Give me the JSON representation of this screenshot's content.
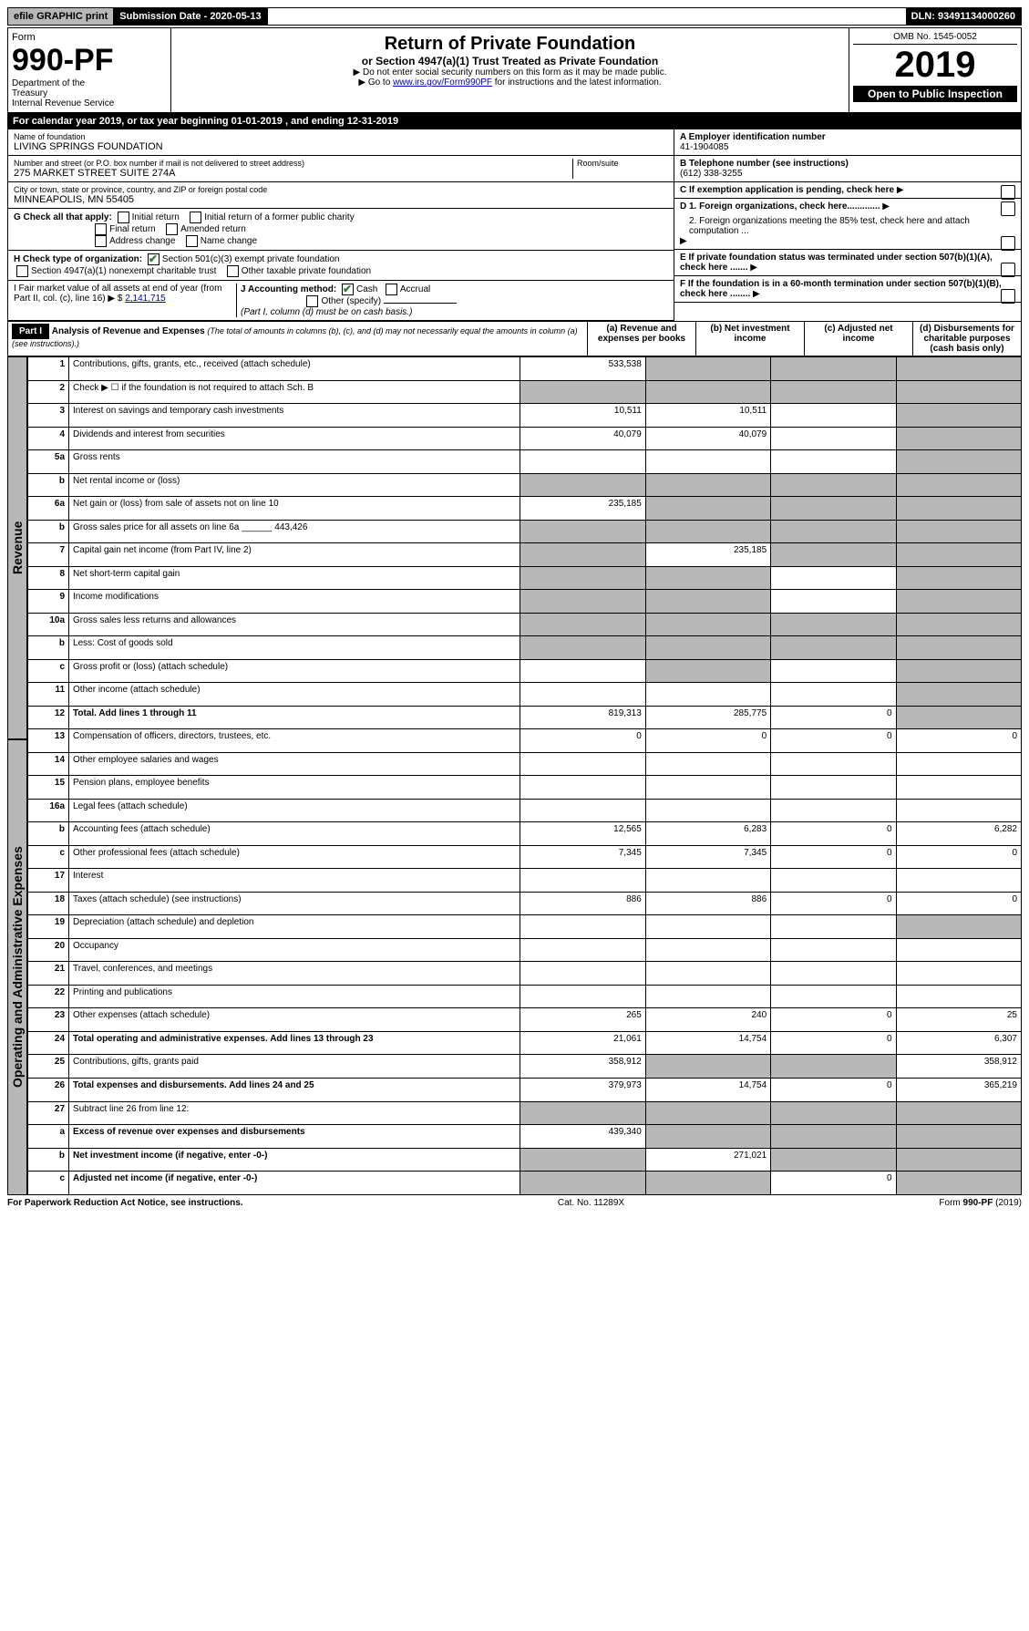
{
  "top": {
    "efile": "efile GRAPHIC print",
    "submission": "Submission Date - 2020-05-13",
    "dln": "DLN: 93491134000260"
  },
  "header": {
    "form_label": "Form",
    "form_number": "990-PF",
    "dept": "Department of the Treasury\nInternal Revenue Service",
    "title": "Return of Private Foundation",
    "subtitle": "or Section 4947(a)(1) Trust Treated as Private Foundation",
    "note1": "▶ Do not enter social security numbers on this form as it may be made public.",
    "note2_prefix": "▶ Go to ",
    "note2_link": "www.irs.gov/Form990PF",
    "note2_suffix": " for instructions and the latest information.",
    "omb": "OMB No. 1545-0052",
    "year": "2019",
    "open": "Open to Public Inspection"
  },
  "calyear": "For calendar year 2019, or tax year beginning 01-01-2019           , and ending 12-31-2019",
  "entity": {
    "name_label": "Name of foundation",
    "name": "LIVING SPRINGS FOUNDATION",
    "addr_label": "Number and street (or P.O. box number if mail is not delivered to street address)",
    "addr": "275 MARKET STREET SUITE 274A",
    "room_label": "Room/suite",
    "city_label": "City or town, state or province, country, and ZIP or foreign postal code",
    "city": "MINNEAPOLIS, MN  55405",
    "ein_label": "A Employer identification number",
    "ein": "41-1904085",
    "phone_label": "B Telephone number (see instructions)",
    "phone": "(612) 338-3255",
    "c_label": "C If exemption application is pending, check here"
  },
  "checks": {
    "g_label": "G Check all that apply:",
    "g_items": [
      "Initial return",
      "Initial return of a former public charity",
      "Final return",
      "Amended return",
      "Address change",
      "Name change"
    ],
    "h_label": "H Check type of organization:",
    "h1": "Section 501(c)(3) exempt private foundation",
    "h2": "Section 4947(a)(1) nonexempt charitable trust",
    "h3": "Other taxable private foundation",
    "i_label": "I Fair market value of all assets at end of year (from Part II, col. (c), line 16) ▶ $",
    "i_value": "2,141,715",
    "j_label": "J Accounting method:",
    "j_cash": "Cash",
    "j_accrual": "Accrual",
    "j_other": "Other (specify)",
    "j_note": "(Part I, column (d) must be on cash basis.)",
    "d1": "D 1. Foreign organizations, check here.............",
    "d2": "2. Foreign organizations meeting the 85% test, check here and attach computation ...",
    "e": "E If private foundation status was terminated under section 507(b)(1)(A), check here .......",
    "f": "F If the foundation is in a 60-month termination under section 507(b)(1)(B), check here ........"
  },
  "part1": {
    "label": "Part I",
    "title": "Analysis of Revenue and Expenses",
    "title_note": "(The total of amounts in columns (b), (c), and (d) may not necessarily equal the amounts in column (a) (see instructions).)",
    "col_a": "(a) Revenue and expenses per books",
    "col_b": "(b) Net investment income",
    "col_c": "(c) Adjusted net income",
    "col_d": "(d) Disbursements for charitable purposes (cash basis only)"
  },
  "revenue_label": "Revenue",
  "expenses_label": "Operating and Administrative Expenses",
  "rows": [
    {
      "n": "1",
      "desc": "Contributions, gifts, grants, etc., received (attach schedule)",
      "a": "533,538",
      "b": "",
      "c": "",
      "d": "",
      "shade": [
        "b",
        "c",
        "d"
      ]
    },
    {
      "n": "2",
      "desc": "Check ▶ ☐ if the foundation is not required to attach Sch. B",
      "a": "",
      "b": "",
      "c": "",
      "d": "",
      "shade": [
        "a",
        "b",
        "c",
        "d"
      ]
    },
    {
      "n": "3",
      "desc": "Interest on savings and temporary cash investments",
      "a": "10,511",
      "b": "10,511",
      "c": "",
      "d": "",
      "shade": [
        "d"
      ]
    },
    {
      "n": "4",
      "desc": "Dividends and interest from securities",
      "a": "40,079",
      "b": "40,079",
      "c": "",
      "d": "",
      "shade": [
        "d"
      ]
    },
    {
      "n": "5a",
      "desc": "Gross rents",
      "a": "",
      "b": "",
      "c": "",
      "d": "",
      "shade": [
        "d"
      ]
    },
    {
      "n": "b",
      "desc": "Net rental income or (loss)",
      "a": "",
      "b": "",
      "c": "",
      "d": "",
      "shade": [
        "a",
        "b",
        "c",
        "d"
      ]
    },
    {
      "n": "6a",
      "desc": "Net gain or (loss) from sale of assets not on line 10",
      "a": "235,185",
      "b": "",
      "c": "",
      "d": "",
      "shade": [
        "b",
        "c",
        "d"
      ]
    },
    {
      "n": "b",
      "desc": "Gross sales price for all assets on line 6a ______ 443,426",
      "a": "",
      "b": "",
      "c": "",
      "d": "",
      "shade": [
        "a",
        "b",
        "c",
        "d"
      ]
    },
    {
      "n": "7",
      "desc": "Capital gain net income (from Part IV, line 2)",
      "a": "",
      "b": "235,185",
      "c": "",
      "d": "",
      "shade": [
        "a",
        "c",
        "d"
      ]
    },
    {
      "n": "8",
      "desc": "Net short-term capital gain",
      "a": "",
      "b": "",
      "c": "",
      "d": "",
      "shade": [
        "a",
        "b",
        "d"
      ]
    },
    {
      "n": "9",
      "desc": "Income modifications",
      "a": "",
      "b": "",
      "c": "",
      "d": "",
      "shade": [
        "a",
        "b",
        "d"
      ]
    },
    {
      "n": "10a",
      "desc": "Gross sales less returns and allowances",
      "a": "",
      "b": "",
      "c": "",
      "d": "",
      "shade": [
        "a",
        "b",
        "c",
        "d"
      ]
    },
    {
      "n": "b",
      "desc": "Less: Cost of goods sold",
      "a": "",
      "b": "",
      "c": "",
      "d": "",
      "shade": [
        "a",
        "b",
        "c",
        "d"
      ]
    },
    {
      "n": "c",
      "desc": "Gross profit or (loss) (attach schedule)",
      "a": "",
      "b": "",
      "c": "",
      "d": "",
      "shade": [
        "b",
        "d"
      ]
    },
    {
      "n": "11",
      "desc": "Other income (attach schedule)",
      "a": "",
      "b": "",
      "c": "",
      "d": "",
      "shade": [
        "d"
      ]
    },
    {
      "n": "12",
      "desc": "Total. Add lines 1 through 11",
      "a": "819,313",
      "b": "285,775",
      "c": "0",
      "d": "",
      "shade": [
        "d"
      ],
      "bold": true
    },
    {
      "n": "13",
      "desc": "Compensation of officers, directors, trustees, etc.",
      "a": "0",
      "b": "0",
      "c": "0",
      "d": "0"
    },
    {
      "n": "14",
      "desc": "Other employee salaries and wages",
      "a": "",
      "b": "",
      "c": "",
      "d": ""
    },
    {
      "n": "15",
      "desc": "Pension plans, employee benefits",
      "a": "",
      "b": "",
      "c": "",
      "d": ""
    },
    {
      "n": "16a",
      "desc": "Legal fees (attach schedule)",
      "a": "",
      "b": "",
      "c": "",
      "d": ""
    },
    {
      "n": "b",
      "desc": "Accounting fees (attach schedule)",
      "a": "12,565",
      "b": "6,283",
      "c": "0",
      "d": "6,282"
    },
    {
      "n": "c",
      "desc": "Other professional fees (attach schedule)",
      "a": "7,345",
      "b": "7,345",
      "c": "0",
      "d": "0"
    },
    {
      "n": "17",
      "desc": "Interest",
      "a": "",
      "b": "",
      "c": "",
      "d": ""
    },
    {
      "n": "18",
      "desc": "Taxes (attach schedule) (see instructions)",
      "a": "886",
      "b": "886",
      "c": "0",
      "d": "0"
    },
    {
      "n": "19",
      "desc": "Depreciation (attach schedule) and depletion",
      "a": "",
      "b": "",
      "c": "",
      "d": "",
      "shade": [
        "d"
      ]
    },
    {
      "n": "20",
      "desc": "Occupancy",
      "a": "",
      "b": "",
      "c": "",
      "d": ""
    },
    {
      "n": "21",
      "desc": "Travel, conferences, and meetings",
      "a": "",
      "b": "",
      "c": "",
      "d": ""
    },
    {
      "n": "22",
      "desc": "Printing and publications",
      "a": "",
      "b": "",
      "c": "",
      "d": ""
    },
    {
      "n": "23",
      "desc": "Other expenses (attach schedule)",
      "a": "265",
      "b": "240",
      "c": "0",
      "d": "25"
    },
    {
      "n": "24",
      "desc": "Total operating and administrative expenses. Add lines 13 through 23",
      "a": "21,061",
      "b": "14,754",
      "c": "0",
      "d": "6,307",
      "bold": true
    },
    {
      "n": "25",
      "desc": "Contributions, gifts, grants paid",
      "a": "358,912",
      "b": "",
      "c": "",
      "d": "358,912",
      "shade": [
        "b",
        "c"
      ]
    },
    {
      "n": "26",
      "desc": "Total expenses and disbursements. Add lines 24 and 25",
      "a": "379,973",
      "b": "14,754",
      "c": "0",
      "d": "365,219",
      "bold": true
    },
    {
      "n": "27",
      "desc": "Subtract line 26 from line 12:",
      "a": "",
      "b": "",
      "c": "",
      "d": "",
      "shade": [
        "a",
        "b",
        "c",
        "d"
      ]
    },
    {
      "n": "a",
      "desc": "Excess of revenue over expenses and disbursements",
      "a": "439,340",
      "b": "",
      "c": "",
      "d": "",
      "shade": [
        "b",
        "c",
        "d"
      ],
      "bold": true
    },
    {
      "n": "b",
      "desc": "Net investment income (if negative, enter -0-)",
      "a": "",
      "b": "271,021",
      "c": "",
      "d": "",
      "shade": [
        "a",
        "c",
        "d"
      ],
      "bold": true
    },
    {
      "n": "c",
      "desc": "Adjusted net income (if negative, enter -0-)",
      "a": "",
      "b": "",
      "c": "0",
      "d": "",
      "shade": [
        "a",
        "b",
        "d"
      ],
      "bold": true
    }
  ],
  "footer": {
    "left": "For Paperwork Reduction Act Notice, see instructions.",
    "center": "Cat. No. 11289X",
    "right": "Form 990-PF (2019)"
  }
}
